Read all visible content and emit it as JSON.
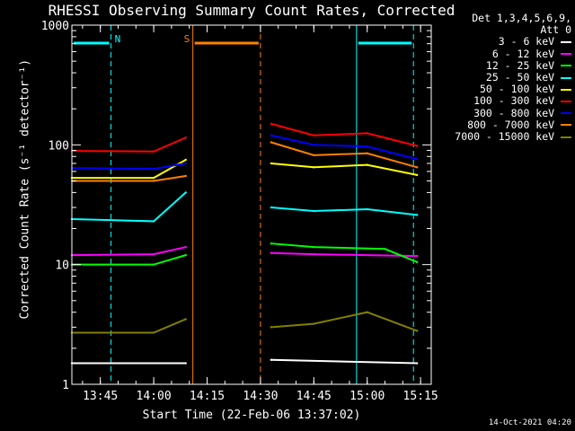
{
  "chart_data": {
    "type": "line",
    "title": "RHESSI Observing Summary Count Rates, Corrected",
    "xlabel": "Start Time (22-Feb-06 13:37:02)",
    "ylabel": "Corrected Count Rate (s⁻¹ detector⁻¹)",
    "yscale": "log",
    "ylim": [
      1,
      1000
    ],
    "xlim": [
      "13:37",
      "15:18"
    ],
    "x_ticks": [
      "13:45",
      "14:00",
      "14:15",
      "14:30",
      "14:45",
      "15:00",
      "15:15"
    ],
    "y_ticks": [
      "1",
      "10",
      "100",
      "1000"
    ],
    "legend_header": [
      "Det 1,3,4,5,6,9,",
      "Att 0"
    ],
    "legend_position": "right",
    "series": [
      {
        "name": "3 - 6 keV",
        "color": "#ffffff",
        "x": [
          "13:37",
          "14:09",
          "14:33",
          "15:14"
        ],
        "values": [
          1.5,
          1.5,
          1.6,
          1.5
        ]
      },
      {
        "name": "6 - 12 keV",
        "color": "#ff00ff",
        "x": [
          "13:37",
          "14:00",
          "14:09",
          "14:33",
          "14:45",
          "15:14"
        ],
        "values": [
          12.0,
          12.2,
          14.0,
          12.5,
          12.2,
          11.8
        ]
      },
      {
        "name": "12 - 25 keV",
        "color": "#00ff00",
        "x": [
          "13:37",
          "14:00",
          "14:09",
          "14:33",
          "14:45",
          "15:05",
          "15:14"
        ],
        "values": [
          10.0,
          10.0,
          12.0,
          15.0,
          14.0,
          13.5,
          10.5
        ]
      },
      {
        "name": "25 - 50 keV",
        "color": "#00ffff",
        "x": [
          "13:37",
          "14:00",
          "14:09",
          "14:33",
          "14:45",
          "15:00",
          "15:14"
        ],
        "values": [
          24,
          23,
          40,
          30,
          28,
          29,
          26
        ]
      },
      {
        "name": "50 - 100 keV",
        "color": "#ffff00",
        "x": [
          "13:37",
          "14:00",
          "14:09",
          "14:33",
          "14:45",
          "15:00",
          "15:14"
        ],
        "values": [
          53,
          53,
          75,
          70,
          65,
          68,
          56
        ]
      },
      {
        "name": "100 - 300 keV",
        "color": "#ff0000",
        "x": [
          "13:37",
          "14:00",
          "14:09",
          "14:33",
          "14:45",
          "15:00",
          "15:14"
        ],
        "values": [
          89,
          88,
          115,
          150,
          120,
          125,
          98
        ]
      },
      {
        "name": "300 - 800 keV",
        "color": "#0000ff",
        "x": [
          "13:37",
          "14:00",
          "14:09",
          "14:33",
          "14:45",
          "15:00",
          "15:14"
        ],
        "values": [
          64,
          63,
          70,
          120,
          100,
          97,
          76
        ]
      },
      {
        "name": "800 - 7000 keV",
        "color": "#ff8000",
        "x": [
          "13:37",
          "14:00",
          "14:09",
          "14:33",
          "14:45",
          "15:00",
          "15:14"
        ],
        "values": [
          50,
          50,
          55,
          105,
          82,
          85,
          65
        ]
      },
      {
        "name": "7000 - 15000 keV",
        "color": "#808000",
        "x": [
          "13:37",
          "14:00",
          "14:09",
          "14:33",
          "14:45",
          "15:00",
          "15:14"
        ],
        "values": [
          2.7,
          2.7,
          3.5,
          3.0,
          3.2,
          4.0,
          2.8
        ]
      }
    ],
    "markers": [
      {
        "label": "N",
        "color": "#00ffff",
        "start": "13:37",
        "end": "13:48"
      },
      {
        "label": "S",
        "color": "#ff8000",
        "start": "14:11",
        "end": "14:30"
      },
      {
        "label": "",
        "color": "#00ffff",
        "start": "14:57",
        "end": "15:13"
      }
    ],
    "footer": "14-Oct-2021 04:20"
  }
}
